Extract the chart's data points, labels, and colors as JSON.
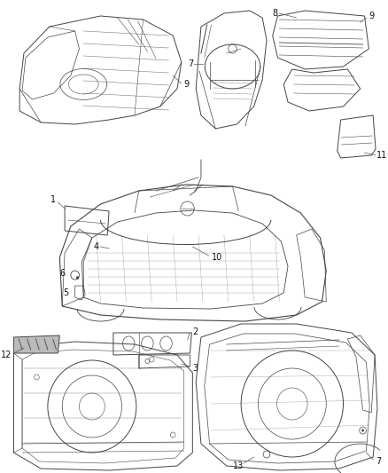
{
  "bg_color": "#ffffff",
  "fig_width": 4.38,
  "fig_height": 5.33,
  "dpi": 100,
  "line_color": "#444444",
  "label_fontsize": 7,
  "label_color": "#111111",
  "leader_color": "#555555"
}
